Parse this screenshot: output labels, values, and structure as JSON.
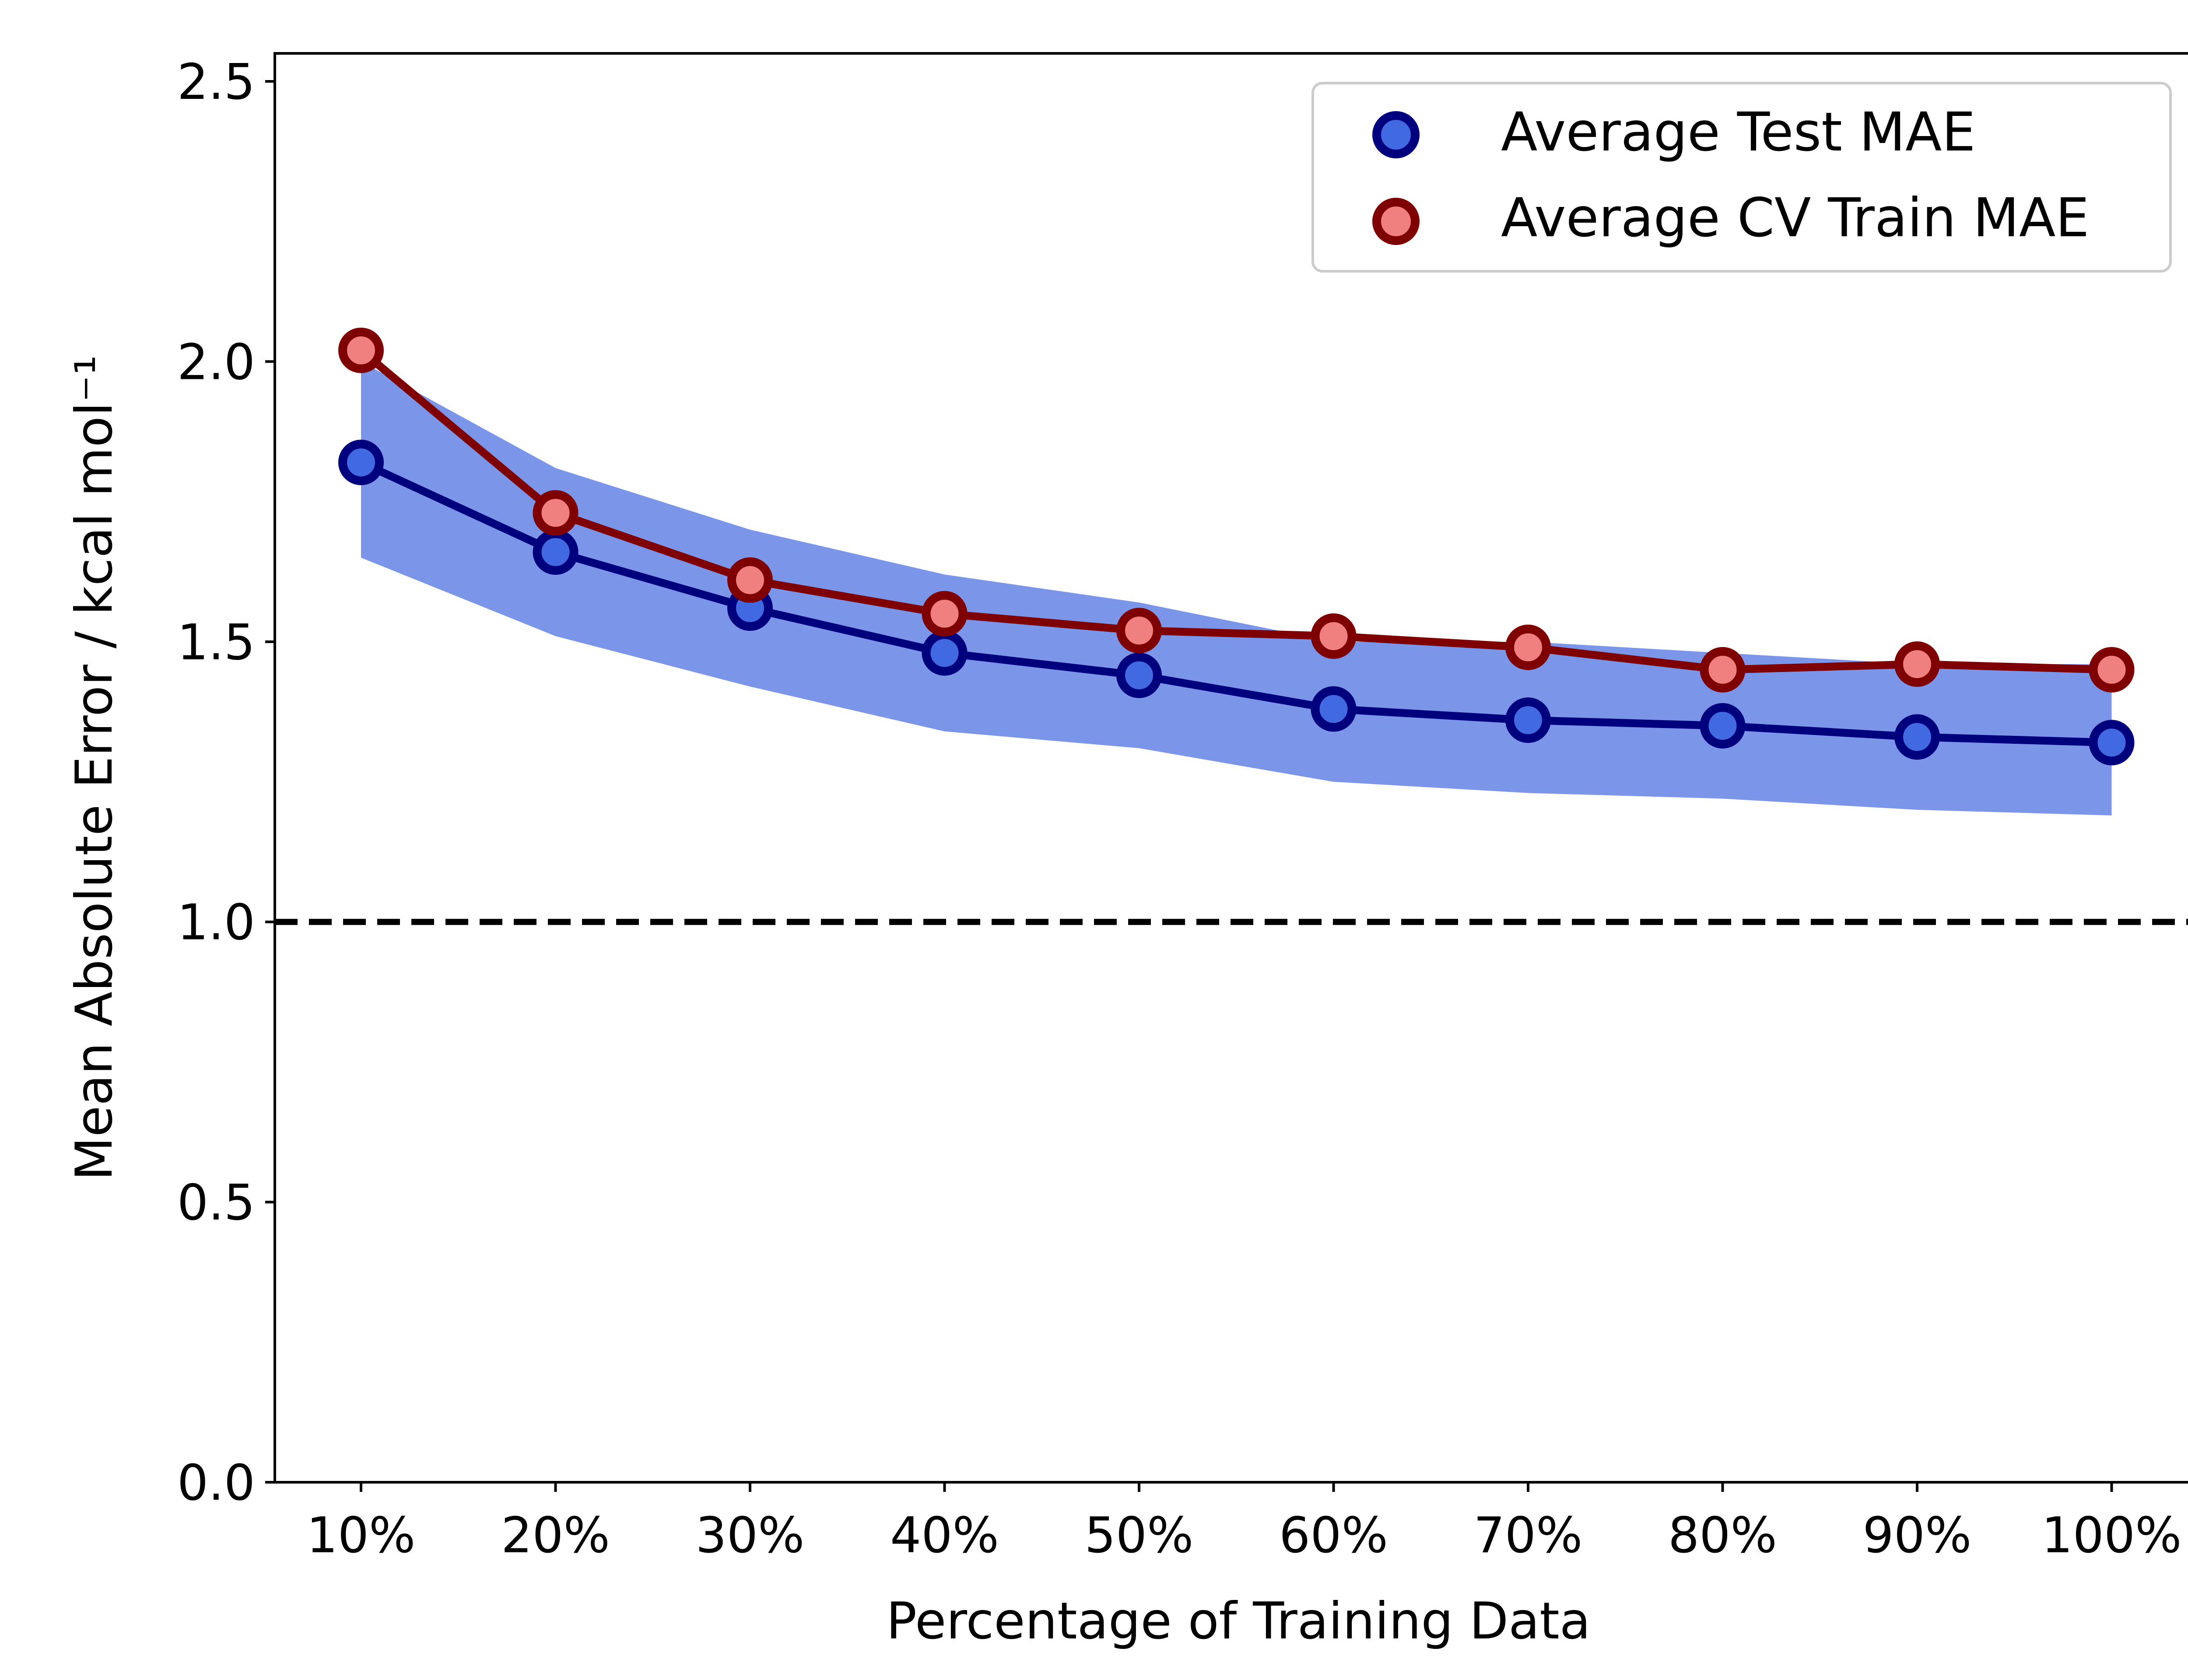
{
  "chart_data": {
    "type": "line",
    "categories": [
      "10%",
      "20%",
      "30%",
      "40%",
      "50%",
      "60%",
      "70%",
      "80%",
      "90%",
      "100%"
    ],
    "xlabel": "Percentage of Training Data",
    "ylabel": "Mean Absolute Error / kcal mol⁻¹",
    "ylim": [
      0,
      2.55
    ],
    "yticks": [
      "0.0",
      "0.5",
      "1.0",
      "1.5",
      "2.0",
      "2.5"
    ],
    "grid": false,
    "legend_position": "top-right",
    "reference_line": {
      "y": 1.0,
      "style": "dashed",
      "color": "#000000"
    },
    "band": {
      "color": "#7b96e8",
      "upper": [
        2.0,
        1.81,
        1.7,
        1.62,
        1.57,
        1.5,
        1.5,
        1.48,
        1.46,
        1.46
      ],
      "lower": [
        1.65,
        1.51,
        1.42,
        1.34,
        1.31,
        1.25,
        1.23,
        1.22,
        1.2,
        1.19
      ]
    },
    "series": [
      {
        "name": "Average Test MAE",
        "values": [
          1.82,
          1.66,
          1.56,
          1.48,
          1.44,
          1.38,
          1.36,
          1.35,
          1.33,
          1.32
        ],
        "line_color": "#00007f",
        "marker_fill": "#4169e1",
        "marker_edge": "#00007f"
      },
      {
        "name": "Average CV Train MAE",
        "values": [
          2.02,
          1.73,
          1.61,
          1.55,
          1.52,
          1.51,
          1.49,
          1.45,
          1.46,
          1.45
        ],
        "line_color": "#7f0000",
        "marker_fill": "#f08080",
        "marker_edge": "#7f0000"
      }
    ]
  }
}
